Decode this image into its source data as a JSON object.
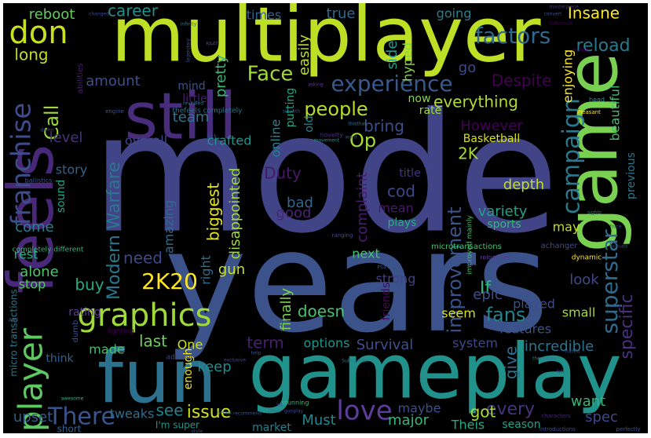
{
  "wordcloud": {
    "background": "#000000",
    "palette": "viridis",
    "words": [
      {
        "text": "mode",
        "color": "#414487"
      },
      {
        "text": "years",
        "color": "#3b528b"
      },
      {
        "text": "multiplayer",
        "color": "#bddf26"
      },
      {
        "text": "gameplay",
        "color": "#21918c"
      },
      {
        "text": "fun",
        "color": "#2c728e"
      },
      {
        "text": "feels",
        "color": "#482878"
      },
      {
        "text": "game",
        "color": "#7ad151"
      },
      {
        "text": "still",
        "color": "#472d7b"
      },
      {
        "text": "graphics",
        "color": "#a0da39"
      },
      {
        "text": "player",
        "color": "#5ec962"
      },
      {
        "text": "franchise",
        "color": "#3e4c8a"
      },
      {
        "text": "campaign",
        "color": "#2a788e"
      },
      {
        "text": "experience",
        "color": "#38598c"
      },
      {
        "text": "love",
        "color": "#5e3c99"
      },
      {
        "text": "don",
        "color": "#c8e020"
      },
      {
        "text": "There",
        "color": "#3a548c"
      },
      {
        "text": "2K20",
        "color": "#fde725"
      },
      {
        "text": "superstar",
        "color": "#2f6b8e"
      },
      {
        "text": "factors",
        "color": "#31688e"
      },
      {
        "text": "Face",
        "color": "#a2da37"
      },
      {
        "text": "people",
        "color": "#b5de2b"
      },
      {
        "text": "improvement",
        "color": "#3b528b"
      },
      {
        "text": "Modern Warfare",
        "color": "#2a788e"
      },
      {
        "text": "fans",
        "color": "#25838e"
      },
      {
        "text": "specific",
        "color": "#46327e"
      },
      {
        "text": "Call",
        "color": "#9bd93c"
      },
      {
        "text": "Op",
        "color": "#a8db34"
      },
      {
        "text": "reload",
        "color": "#29798e"
      },
      {
        "text": "Insane",
        "color": "#fde725"
      },
      {
        "text": "reboot",
        "color": "#65cb5e"
      },
      {
        "text": "career",
        "color": "#20928c"
      },
      {
        "text": "long",
        "color": "#c2df23"
      },
      {
        "text": "pretty",
        "color": "#35b779"
      },
      {
        "text": "easily",
        "color": "#b8de29"
      },
      {
        "text": "true",
        "color": "#31688e"
      },
      {
        "text": "times",
        "color": "#32648e"
      },
      {
        "text": "going",
        "color": "#277f8e"
      },
      {
        "text": "side",
        "color": "#1e9b8a"
      },
      {
        "text": "hyped",
        "color": "#8bd646"
      },
      {
        "text": "go",
        "color": "#3e4989"
      },
      {
        "text": "enjoying",
        "color": "#fde725"
      },
      {
        "text": "amount",
        "color": "#3d4e8a"
      },
      {
        "text": "Despite",
        "color": "#440154"
      },
      {
        "text": "mind",
        "color": "#3b518b"
      },
      {
        "text": "little",
        "color": "#481f70"
      },
      {
        "text": "putting",
        "color": "#21a685"
      },
      {
        "text": "everything",
        "color": "#b0dd2f"
      },
      {
        "text": "now",
        "color": "#85d54a"
      },
      {
        "text": "rate",
        "color": "#9fda3a"
      },
      {
        "text": "beautiful",
        "color": "#40bd72"
      },
      {
        "text": "online",
        "color": "#26828e"
      },
      {
        "text": "old",
        "color": "#24878e"
      },
      {
        "text": "team",
        "color": "#2c728e"
      },
      {
        "text": "However",
        "color": "#440154"
      },
      {
        "text": "bring",
        "color": "#3c4f8a"
      },
      {
        "text": "level",
        "color": "#46337f"
      },
      {
        "text": "overall",
        "color": "#3f4889"
      },
      {
        "text": "crafted",
        "color": "#1f948c"
      },
      {
        "text": "Basketball",
        "color": "#d8e219"
      },
      {
        "text": "2K",
        "color": "#a5db36"
      },
      {
        "text": "previous",
        "color": "#2a778e"
      },
      {
        "text": "story",
        "color": "#33638d"
      },
      {
        "text": "Duty",
        "color": "#48196b"
      },
      {
        "text": "bad",
        "color": "#31688e"
      },
      {
        "text": "cod",
        "color": "#3f4788"
      },
      {
        "text": "title",
        "color": "#453781"
      },
      {
        "text": "depth",
        "color": "#c0df25"
      },
      {
        "text": "complaint",
        "color": "#481c6e"
      },
      {
        "text": "variety",
        "color": "#1fa188"
      },
      {
        "text": "mean",
        "color": "#48186a"
      },
      {
        "text": "sound",
        "color": "#20a386"
      },
      {
        "text": "good",
        "color": "#482475"
      },
      {
        "text": "plays",
        "color": "#27ad81"
      },
      {
        "text": "sports",
        "color": "#35b779"
      },
      {
        "text": "may",
        "color": "#c2df23"
      },
      {
        "text": "biggest",
        "color": "#e5e419"
      },
      {
        "text": "disappointed",
        "color": "#a0da39"
      },
      {
        "text": "amazing",
        "color": "#2f6c8e"
      },
      {
        "text": "come",
        "color": "#27808e"
      },
      {
        "text": "rest",
        "color": "#29af7f"
      },
      {
        "text": "need",
        "color": "#3e4989"
      },
      {
        "text": "alone",
        "color": "#50c46a"
      },
      {
        "text": "right",
        "color": "#2e6f8e"
      },
      {
        "text": "gun",
        "color": "#c5e021"
      },
      {
        "text": "next",
        "color": "#46c06f"
      },
      {
        "text": "If",
        "color": "#32b67a"
      },
      {
        "text": "friends",
        "color": "#450559"
      },
      {
        "text": "strong",
        "color": "#424086"
      },
      {
        "text": "stop",
        "color": "#5ac864"
      },
      {
        "text": "buy",
        "color": "#24aa83"
      },
      {
        "text": "epic",
        "color": "#3c4f8a"
      },
      {
        "text": "played",
        "color": "#3d4d8a"
      },
      {
        "text": "look",
        "color": "#3f4889"
      },
      {
        "text": "rating",
        "color": "#5e3c99"
      },
      {
        "text": "finally",
        "color": "#7ad151"
      },
      {
        "text": "doesn",
        "color": "#4ac16d"
      },
      {
        "text": "seem",
        "color": "#d5e21a"
      },
      {
        "text": "small",
        "color": "#a2da37"
      },
      {
        "text": "features",
        "color": "#3b528b"
      },
      {
        "text": "made",
        "color": "#46c06f"
      },
      {
        "text": "last",
        "color": "#6ece58"
      },
      {
        "text": "One",
        "color": "#d0e11c"
      },
      {
        "text": "term",
        "color": "#481f70"
      },
      {
        "text": "options",
        "color": "#20928c"
      },
      {
        "text": "Survival",
        "color": "#3d4e8a"
      },
      {
        "text": "system",
        "color": "#3f4788"
      },
      {
        "text": "incredible",
        "color": "#2b748e"
      },
      {
        "text": "give",
        "color": "#2e6e8e"
      },
      {
        "text": "think",
        "color": "#34618d"
      },
      {
        "text": "enough",
        "color": "#f1e51d"
      },
      {
        "text": "keep",
        "color": "#228b8d"
      },
      {
        "text": "see",
        "color": "#25838e"
      },
      {
        "text": "issue",
        "color": "#d0e11c"
      },
      {
        "text": "every",
        "color": "#46337f"
      },
      {
        "text": "got",
        "color": "#a8db34"
      },
      {
        "text": "maybe",
        "color": "#3c4f8a"
      },
      {
        "text": "Must",
        "color": "#24868e"
      },
      {
        "text": "want",
        "color": "#32b67a"
      },
      {
        "text": "spec",
        "color": "#3e4989"
      },
      {
        "text": "upset",
        "color": "#365c8d"
      },
      {
        "text": "tweaks",
        "color": "#2e6e8e"
      },
      {
        "text": "major",
        "color": "#35b779"
      },
      {
        "text": "Theis",
        "color": "#24aa83"
      },
      {
        "text": "season",
        "color": "#1fa287"
      },
      {
        "text": "market",
        "color": "#26818e"
      },
      {
        "text": "I'm super",
        "color": "#1f978b"
      },
      {
        "text": "short",
        "color": "#33638d"
      },
      {
        "text": "micro transactions",
        "color": "#2a788e"
      },
      {
        "text": "microtransactions",
        "color": "#46c06f"
      },
      {
        "text": "improved mainly",
        "color": "#4ac16d"
      },
      {
        "text": "achanger",
        "color": "#3e4c8a"
      },
      {
        "text": "dynamic",
        "color": "#fde725"
      },
      {
        "text": "reloading",
        "color": "#5e3c99"
      },
      {
        "text": "completely different",
        "color": "#35b779"
      },
      {
        "text": "ballistics",
        "color": "#3c4f8a"
      },
      {
        "text": "lighting",
        "color": "#440154"
      },
      {
        "text": "addition",
        "color": "#3f4889"
      },
      {
        "text": "dumb",
        "color": "#3b528b"
      },
      {
        "text": "novelty",
        "color": "#46327e"
      },
      {
        "text": "thefeels completely",
        "color": "#2c728e"
      },
      {
        "text": "abilities",
        "color": "#481f70"
      },
      {
        "text": "ranging",
        "color": "#3e4989"
      },
      {
        "text": "Subnaurise",
        "color": "#2a788e"
      },
      {
        "text": "perfectly",
        "color": "#3b528b"
      },
      {
        "text": "introductions",
        "color": "#3e4c8a"
      },
      {
        "text": "characters",
        "color": "#482878"
      },
      {
        "text": "masterpiece",
        "color": "#46337f"
      },
      {
        "text": "customize",
        "color": "#440154"
      },
      {
        "text": "convert",
        "color": "#3b528b"
      },
      {
        "text": "changed",
        "color": "#3e4989"
      },
      {
        "text": "legendary",
        "color": "#3b528b"
      },
      {
        "text": "infinity",
        "color": "#2a788e"
      },
      {
        "text": "engine",
        "color": "#3b528b"
      },
      {
        "text": "stunning",
        "color": "#35b779"
      },
      {
        "text": "Pleasant",
        "color": "#fde725"
      },
      {
        "text": "visuals",
        "color": "#3e4c8a"
      },
      {
        "text": "head",
        "color": "#20928c"
      },
      {
        "text": "force",
        "color": "#3b528b"
      },
      {
        "text": "sights",
        "color": "#2c728e"
      },
      {
        "text": "NFL",
        "color": "#3e4989"
      },
      {
        "text": "PS4",
        "color": "#3b528b"
      },
      {
        "text": "fps",
        "color": "#3e4c8a"
      },
      {
        "text": "movement",
        "color": "#21918c"
      },
      {
        "text": "kick",
        "color": "#3b528b"
      },
      {
        "text": "smooth",
        "color": "#3e4989"
      },
      {
        "text": "revealed",
        "color": "#2a788e"
      },
      {
        "text": "damn",
        "color": "#3b528b"
      },
      {
        "text": "ending",
        "color": "#440154"
      },
      {
        "text": "exclusive",
        "color": "#3e4c8a"
      },
      {
        "text": "recommend",
        "color": "#3b528b"
      },
      {
        "text": "series",
        "color": "#2c728e"
      },
      {
        "text": "gunplay",
        "color": "#3e4989"
      },
      {
        "text": "help",
        "color": "#3b528b"
      },
      {
        "text": "themodes",
        "color": "#2a788e"
      },
      {
        "text": "style",
        "color": "#3e4c8a"
      },
      {
        "text": "awesome",
        "color": "#35b779"
      },
      {
        "text": "ADS",
        "color": "#3b528b"
      },
      {
        "text": "let",
        "color": "#3e4989"
      },
      {
        "text": "thisthat",
        "color": "#2c728e"
      },
      {
        "text": "ward",
        "color": "#3b528b"
      },
      {
        "text": "felt",
        "color": "#3e4c8a"
      },
      {
        "text": "nailed",
        "color": "#3b528b"
      },
      {
        "text": "asking",
        "color": "#5e3c99"
      },
      {
        "text": "RAAT",
        "color": "#3e4989"
      },
      {
        "text": "thisis",
        "color": "#2a788e"
      }
    ]
  }
}
